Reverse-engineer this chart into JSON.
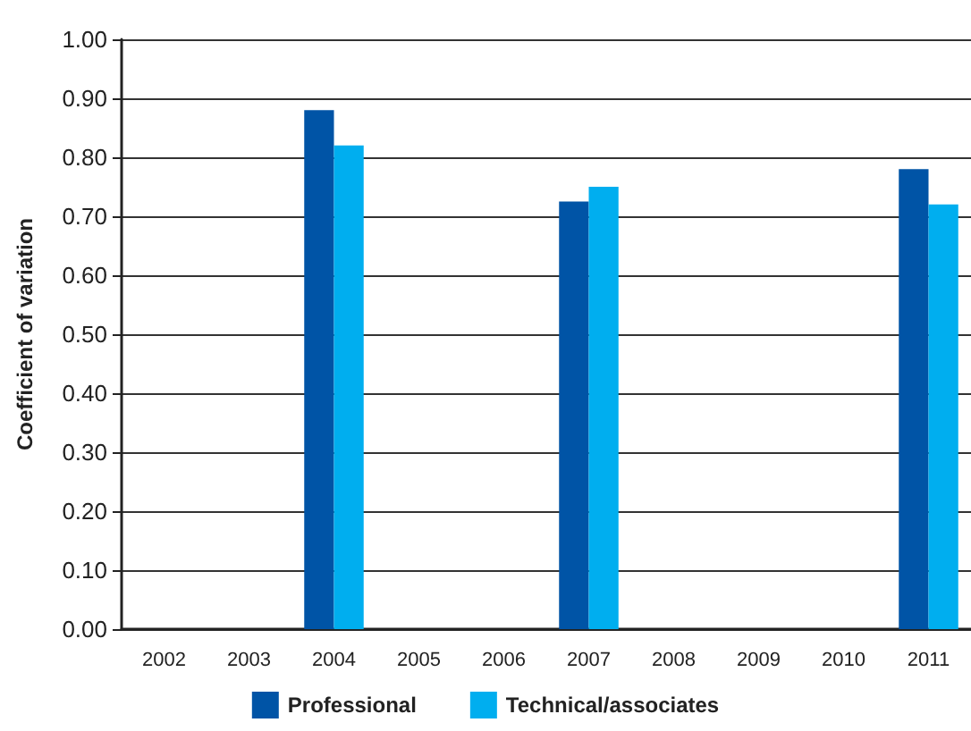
{
  "chart_data": {
    "type": "bar",
    "ylabel": "Coefficient of variation",
    "categories": [
      "2002",
      "2003",
      "2004",
      "2005",
      "2006",
      "2007",
      "2008",
      "2009",
      "2010",
      "2011"
    ],
    "series": [
      {
        "name": "Professional",
        "color": "#0054a6",
        "values": [
          null,
          null,
          0.88,
          null,
          null,
          0.725,
          null,
          null,
          null,
          0.78
        ]
      },
      {
        "name": "Technical/associates",
        "color": "#00aeef",
        "values": [
          null,
          null,
          0.82,
          null,
          null,
          0.75,
          null,
          null,
          null,
          0.72
        ]
      }
    ],
    "ylim": [
      0,
      1
    ],
    "yticks": [
      {
        "value": 0,
        "label": "0.00"
      },
      {
        "value": 0.1,
        "label": "0.10"
      },
      {
        "value": 0.2,
        "label": "0.20"
      },
      {
        "value": 0.3,
        "label": "0.30"
      },
      {
        "value": 0.4,
        "label": "0.40"
      },
      {
        "value": 0.5,
        "label": "0.50"
      },
      {
        "value": 0.6,
        "label": "0.60"
      },
      {
        "value": 0.7,
        "label": "0.70"
      },
      {
        "value": 0.8,
        "label": "0.80"
      },
      {
        "value": 0.9,
        "label": "0.90"
      },
      {
        "value": 1,
        "label": "1.00"
      }
    ],
    "grid": "y",
    "legend": "bottom"
  }
}
